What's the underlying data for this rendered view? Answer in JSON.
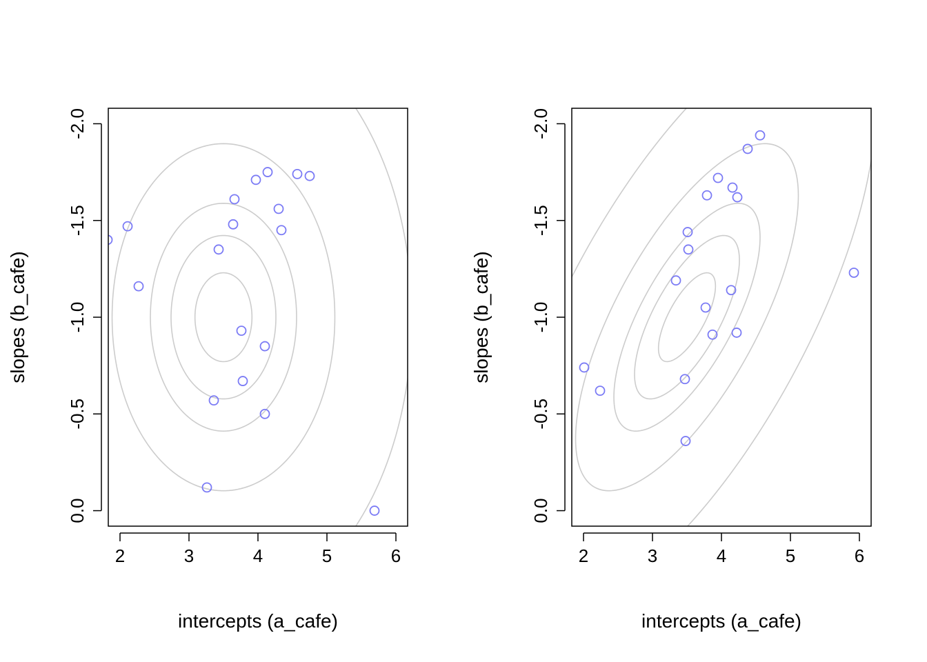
{
  "chart_data": [
    {
      "type": "scatter",
      "title": "",
      "xlabel": "intercepts (a_cafe)",
      "ylabel": "slopes (b_cafe)",
      "xlim": [
        1.83,
        6.17
      ],
      "ylim": [
        0.08,
        -2.08
      ],
      "y_reversed": true,
      "xticks": [
        2,
        3,
        4,
        5,
        6
      ],
      "yticks": [
        -2.0,
        -1.5,
        -1.0,
        -0.5,
        0.0
      ],
      "ytick_labels": [
        "-2.0",
        "-1.5",
        "-1.0",
        "-0.5",
        "0.0"
      ],
      "grid": false,
      "point_color": "#7b7bf5",
      "contour_color": "#cccccc",
      "contours": {
        "center": [
          3.5,
          -1.0
        ],
        "sd": [
          0.9,
          0.5
        ],
        "rho": 0.0,
        "levels": [
          0.1,
          0.3,
          0.5,
          0.8,
          0.99
        ]
      },
      "points": [
        {
          "x": 1.82,
          "y": -1.4
        },
        {
          "x": 2.11,
          "y": -1.47
        },
        {
          "x": 2.27,
          "y": -1.16
        },
        {
          "x": 3.43,
          "y": -1.35
        },
        {
          "x": 3.64,
          "y": -1.48
        },
        {
          "x": 3.66,
          "y": -1.61
        },
        {
          "x": 3.97,
          "y": -1.71
        },
        {
          "x": 4.14,
          "y": -1.75
        },
        {
          "x": 4.57,
          "y": -1.74
        },
        {
          "x": 4.75,
          "y": -1.73
        },
        {
          "x": 4.3,
          "y": -1.56
        },
        {
          "x": 4.34,
          "y": -1.45
        },
        {
          "x": 3.76,
          "y": -0.93
        },
        {
          "x": 4.1,
          "y": -0.85
        },
        {
          "x": 3.78,
          "y": -0.67
        },
        {
          "x": 3.36,
          "y": -0.57
        },
        {
          "x": 4.1,
          "y": -0.5
        },
        {
          "x": 3.26,
          "y": -0.12
        },
        {
          "x": 5.69,
          "y": 0.0
        }
      ]
    },
    {
      "type": "scatter",
      "title": "",
      "xlabel": "intercepts (a_cafe)",
      "ylabel": "slopes (b_cafe)",
      "xlim": [
        1.83,
        6.17
      ],
      "ylim": [
        0.08,
        -2.08
      ],
      "y_reversed": true,
      "xticks": [
        2,
        3,
        4,
        5,
        6
      ],
      "yticks": [
        -2.0,
        -1.5,
        -1.0,
        -0.5,
        0.0
      ],
      "ytick_labels": [
        "-2.0",
        "-1.5",
        "-1.0",
        "-0.5",
        "0.0"
      ],
      "grid": false,
      "point_color": "#7b7bf5",
      "contour_color": "#cccccc",
      "contours": {
        "center": [
          3.5,
          -1.0
        ],
        "sd": [
          0.9,
          0.5
        ],
        "rho": -0.7,
        "levels": [
          0.1,
          0.3,
          0.5,
          0.8,
          0.99
        ]
      },
      "points": [
        {
          "x": 4.56,
          "y": -1.94
        },
        {
          "x": 4.38,
          "y": -1.87
        },
        {
          "x": 3.95,
          "y": -1.72
        },
        {
          "x": 4.16,
          "y": -1.67
        },
        {
          "x": 4.23,
          "y": -1.62
        },
        {
          "x": 3.79,
          "y": -1.63
        },
        {
          "x": 3.51,
          "y": -1.44
        },
        {
          "x": 3.52,
          "y": -1.35
        },
        {
          "x": 3.34,
          "y": -1.19
        },
        {
          "x": 4.14,
          "y": -1.14
        },
        {
          "x": 3.77,
          "y": -1.05
        },
        {
          "x": 3.87,
          "y": -0.91
        },
        {
          "x": 4.22,
          "y": -0.92
        },
        {
          "x": 3.47,
          "y": -0.68
        },
        {
          "x": 2.01,
          "y": -0.74
        },
        {
          "x": 2.24,
          "y": -0.62
        },
        {
          "x": 3.48,
          "y": -0.36
        },
        {
          "x": 5.92,
          "y": -1.23
        }
      ]
    }
  ]
}
